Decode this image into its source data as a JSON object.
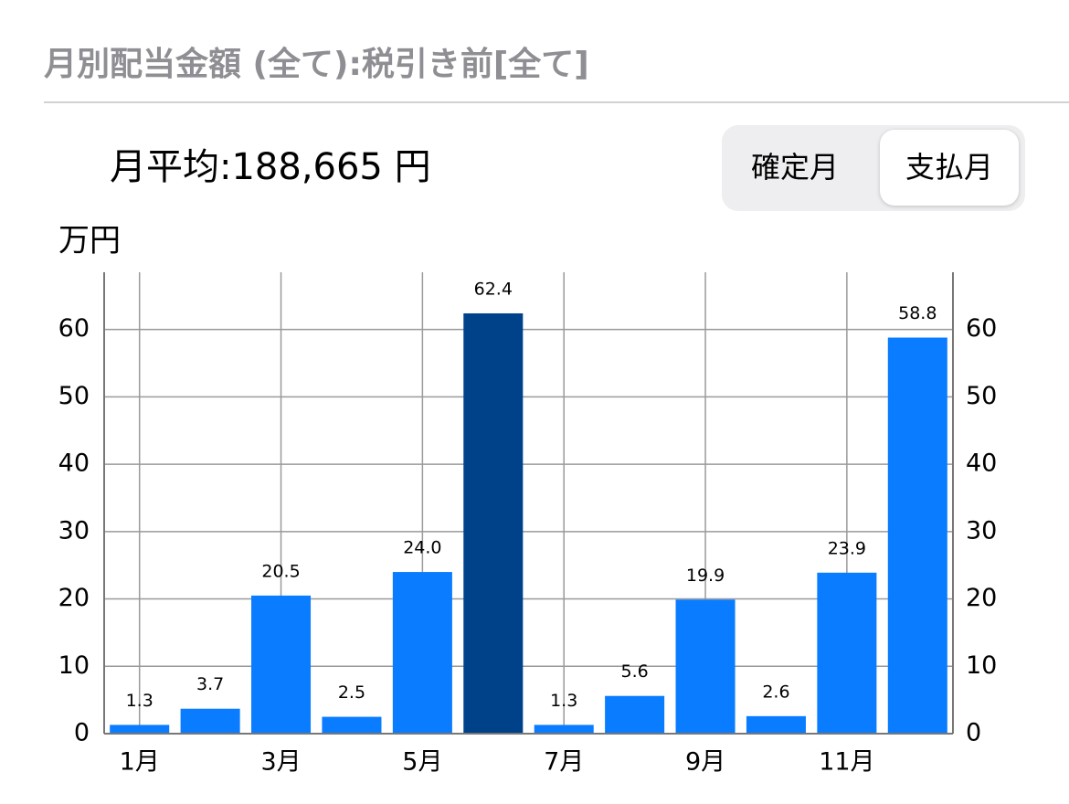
{
  "header": {
    "title": "月別配当金額 (全て):税引き前[全て]"
  },
  "summary": {
    "average": "月平均:188,665 円"
  },
  "segmented_control": {
    "options": [
      "確定月",
      "支払月"
    ],
    "selected": 1
  },
  "chart_data": {
    "type": "bar",
    "y_label": "万円",
    "categories": [
      "1月",
      null,
      "3月",
      null,
      "5月",
      null,
      "7月",
      null,
      "9月",
      null,
      "11月",
      null
    ],
    "values": [
      1.3,
      3.7,
      20.5,
      2.5,
      24.0,
      62.4,
      1.3,
      5.6,
      19.9,
      2.6,
      23.9,
      58.8
    ],
    "value_labels": [
      "1.3",
      "3.7",
      "20.5",
      "2.5",
      "24.0",
      "62.4",
      "1.3",
      "5.6",
      "19.9",
      "2.6",
      "23.9",
      "58.8"
    ],
    "colors": [
      "#0a7cff",
      "#0a7cff",
      "#0a7cff",
      "#0a7cff",
      "#0a7cff",
      "#004289",
      "#0a7cff",
      "#0a7cff",
      "#0a7cff",
      "#0a7cff",
      "#0a7cff",
      "#0a7cff"
    ],
    "ylim": [
      0,
      68.5
    ],
    "yticks": [
      0,
      10,
      20,
      30,
      40,
      50,
      60
    ],
    "y2lim": [
      0,
      68.5
    ],
    "y2ticks": [
      0,
      10,
      20,
      30,
      40,
      50,
      60
    ],
    "grid": true
  }
}
